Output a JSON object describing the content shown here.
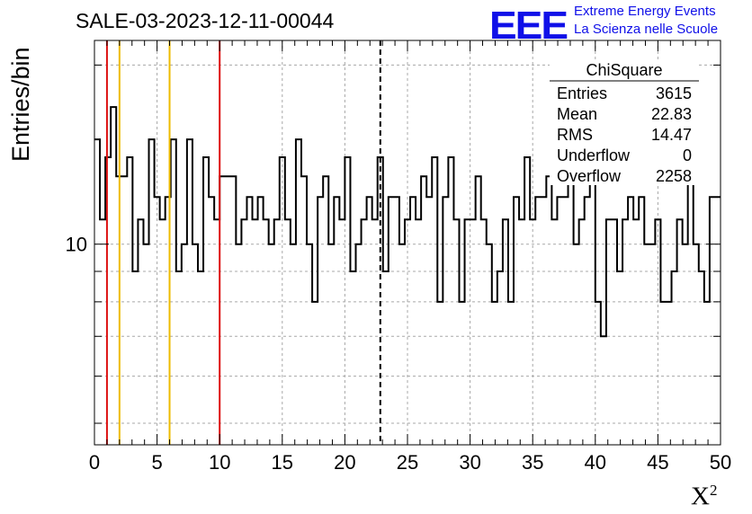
{
  "header": {
    "title": "SALE-03-2023-12-11-00044",
    "logo_text": "EEE",
    "logo_line1": "Extreme Energy Events",
    "logo_line2": "La Scienza nelle Scuole"
  },
  "stats_box": {
    "name": "ChiSquare",
    "rows": [
      {
        "label": "Entries",
        "value": "3615"
      },
      {
        "label": "Mean",
        "value": "22.83"
      },
      {
        "label": "RMS",
        "value": "14.47"
      },
      {
        "label": "Underflow",
        "value": "0"
      },
      {
        "label": "Overflow",
        "value": "2258"
      }
    ]
  },
  "colors": {
    "line_red": "#dd1111",
    "line_yellow": "#eebb00",
    "histogram": "#000000",
    "grid": "#a8a8a8",
    "logo_blue": "#1010e8"
  },
  "chart_data": {
    "type": "bar",
    "style": "step-histogram",
    "title": "SALE-03-2023-12-11-00044",
    "xlabel": "Χ",
    "xlabel_superscript": "2",
    "ylabel": "Entries/bin",
    "xlim": [
      0,
      50
    ],
    "ylim": [
      4.6,
      22
    ],
    "yscale": "log",
    "grid": true,
    "x_ticks": [
      0,
      5,
      10,
      15,
      20,
      25,
      30,
      35,
      40,
      45,
      50
    ],
    "y_ticks": [
      10
    ],
    "bin_width": 0.5,
    "bin_start": 0,
    "values": [
      14,
      15,
      11,
      14,
      16,
      13,
      13,
      14,
      14,
      16,
      9,
      11,
      10,
      12,
      16,
      12,
      11,
      12,
      13,
      12,
      13,
      15,
      10,
      11,
      15,
      9,
      13,
      12,
      11,
      13,
      13,
      13,
      13,
      10,
      11,
      12,
      11,
      12,
      11,
      10,
      11,
      14,
      11,
      10,
      11,
      14,
      13,
      10,
      8,
      13,
      11,
      12,
      13,
      9,
      11,
      12,
      11,
      9,
      8,
      11,
      11,
      12,
      11,
      14,
      12,
      10,
      11,
      9,
      13,
      12,
      11,
      8,
      14,
      12,
      8,
      11,
      13,
      12,
      8,
      11,
      10,
      11,
      10,
      8,
      12,
      14,
      13,
      12,
      10,
      12,
      10,
      7,
      6,
      12,
      13,
      11,
      14,
      12,
      13,
      13,
      10,
      10,
      12,
      10,
      10,
      12,
      11,
      12,
      10,
      12,
      13,
      11,
      10,
      12,
      11,
      12,
      13,
      10,
      12,
      12,
      9,
      9,
      11,
      13,
      10,
      9,
      12,
      12,
      10,
      10,
      11,
      12,
      10,
      10,
      11,
      12,
      11,
      12,
      12,
      11,
      12,
      11,
      11,
      13,
      9,
      10,
      10,
      11,
      10,
      11,
      10,
      10,
      12,
      11,
      12,
      10,
      10,
      12,
      12,
      12,
      10,
      12,
      13,
      12,
      9,
      10,
      12,
      12,
      11,
      10,
      10,
      12,
      13,
      12,
      10,
      9,
      11,
      10,
      10,
      12,
      12,
      13,
      11,
      10,
      11,
      11,
      12,
      13,
      12,
      12,
      9,
      9,
      11,
      12,
      12,
      10,
      12,
      11,
      12,
      11,
      12,
      14,
      13,
      11,
      11,
      13,
      12,
      10,
      13,
      11,
      12,
      10,
      11,
      10,
      12,
      12,
      13,
      11,
      10,
      12,
      10,
      9,
      10,
      11,
      11,
      12,
      10,
      10,
      12,
      10,
      11,
      14,
      11,
      12,
      12,
      11,
      10,
      12,
      14,
      12,
      12,
      10,
      12,
      11,
      11,
      11,
      12,
      13,
      11,
      12,
      12,
      12,
      13,
      12,
      11,
      12,
      13,
      12,
      12,
      13,
      11,
      10,
      11,
      12,
      11,
      12,
      12,
      11,
      11,
      11,
      10,
      12,
      13,
      12,
      11,
      10,
      10,
      12,
      13,
      10,
      10,
      12,
      14,
      12,
      11,
      11,
      13,
      12,
      11,
      12,
      13,
      11,
      12,
      11,
      12,
      13,
      12,
      11,
      10,
      11,
      11,
      11,
      12,
      12,
      13,
      11,
      12,
      11,
      10,
      9,
      11,
      10,
      11,
      12,
      11,
      12,
      10,
      11,
      12,
      11,
      11,
      11,
      13,
      10,
      11,
      12,
      12,
      12,
      12,
      11,
      10,
      13,
      12,
      10,
      11,
      12,
      11,
      10,
      11,
      11,
      11,
      10,
      11,
      10,
      10,
      12,
      13,
      12,
      12,
      12,
      11,
      11,
      10,
      10,
      10,
      11,
      11,
      12,
      13,
      11,
      10,
      9,
      11,
      10,
      11,
      10,
      10,
      10,
      10,
      10,
      10,
      13,
      12,
      12,
      12,
      10,
      11,
      10,
      12,
      11,
      10,
      11,
      13,
      12,
      11,
      12,
      11,
      11,
      12,
      11,
      10,
      11,
      10,
      10,
      11,
      12,
      11,
      12,
      12,
      10,
      10,
      11,
      11,
      12,
      12,
      12,
      11,
      12,
      9,
      9,
      11,
      12,
      11,
      12,
      11,
      10,
      11,
      11,
      10,
      10,
      10,
      10,
      12,
      11,
      10,
      10,
      10,
      11,
      11,
      12,
      12,
      12,
      11,
      9,
      9,
      9,
      10,
      11,
      12,
      13,
      13,
      13,
      11,
      11,
      10,
      10,
      11,
      11,
      11,
      12,
      11,
      10,
      10,
      10,
      10,
      12,
      12,
      12,
      11,
      11,
      12,
      11,
      9,
      10,
      10,
      10,
      11,
      12,
      12,
      12,
      11,
      10,
      11,
      11,
      10,
      10,
      12,
      13,
      12,
      11,
      10,
      9,
      11,
      11,
      11,
      12,
      12,
      11,
      10,
      10,
      11,
      12,
      11,
      10,
      10,
      11,
      12,
      11,
      12,
      11,
      10,
      11,
      12,
      10,
      11,
      10,
      11,
      9,
      10,
      12,
      12,
      11,
      11,
      10,
      10,
      10,
      10,
      11,
      10,
      9,
      9,
      9,
      10,
      11,
      12,
      12,
      12,
      10,
      9,
      10,
      10,
      10,
      11,
      10,
      10,
      11,
      11,
      10,
      12,
      12,
      11,
      11,
      10,
      11,
      10,
      9,
      10,
      11,
      12,
      10,
      10,
      10,
      11,
      11,
      11,
      12,
      11,
      11,
      11,
      10,
      11,
      12,
      11,
      9,
      10,
      11,
      11,
      12,
      11,
      11,
      10,
      11,
      11,
      11,
      10,
      11,
      10,
      10,
      10,
      11,
      11,
      12,
      11,
      10,
      11,
      12,
      12,
      11,
      10,
      10,
      10,
      11,
      12,
      12,
      11,
      10,
      10,
      11,
      11,
      11,
      10,
      10,
      10,
      10,
      9,
      9,
      9,
      9,
      10,
      11,
      12,
      12,
      12,
      11,
      10,
      10,
      10,
      11,
      11,
      10,
      10,
      10,
      10,
      10,
      11,
      10,
      11,
      11,
      10,
      10,
      10,
      11,
      10,
      11,
      10,
      10,
      10,
      9,
      9,
      9,
      9,
      10,
      10,
      11,
      11,
      11,
      11,
      11,
      11,
      10,
      10,
      10,
      11,
      10,
      10,
      10,
      10,
      11,
      11,
      11,
      10,
      10,
      9,
      9,
      10,
      10,
      10,
      10,
      11,
      11,
      11,
      10,
      10,
      10,
      10,
      10,
      10,
      11,
      11,
      10,
      10,
      11,
      11,
      11,
      11,
      10,
      10,
      10,
      10,
      10,
      11,
      11,
      11,
      10,
      9,
      9,
      9,
      10,
      10,
      10,
      11,
      11,
      11,
      10,
      10,
      10,
      10,
      10,
      10,
      10,
      10,
      10,
      10,
      10,
      11,
      11,
      11,
      10,
      10,
      10,
      10,
      10,
      10,
      10,
      10,
      10,
      10,
      10,
      10,
      11,
      11,
      10,
      10,
      10,
      10,
      10,
      10,
      10,
      10,
      10,
      10,
      10,
      11,
      10,
      10,
      10,
      10,
      10,
      10,
      10,
      10,
      10,
      10,
      10,
      10,
      10,
      10,
      10,
      10,
      10,
      10,
      10,
      10,
      10,
      10,
      10,
      10,
      10,
      10,
      10,
      10,
      10,
      10,
      10,
      10,
      10,
      10,
      10,
      10,
      10,
      10,
      10,
      10,
      10,
      10,
      10,
      10,
      10,
      10,
      10,
      10,
      10,
      10,
      10,
      10,
      10,
      10,
      10,
      10,
      10,
      10,
      10,
      10,
      10,
      10,
      10,
      10,
      10,
      10,
      10,
      10,
      10,
      10,
      10,
      10,
      10,
      10,
      10,
      10,
      10,
      10,
      10,
      10,
      10,
      10,
      10,
      10,
      10,
      10,
      10,
      10,
      10,
      10,
      10,
      10,
      10,
      10,
      10,
      10,
      10,
      10,
      10,
      10,
      10,
      10,
      10,
      10,
      10,
      10
    ],
    "bin_values": [
      16,
      11,
      14,
      17,
      13,
      13,
      14,
      14,
      16,
      9,
      11,
      10,
      15,
      12,
      11,
      12,
      15,
      12,
      13,
      15,
      10,
      11,
      15,
      9,
      14,
      12,
      11,
      13,
      13,
      13,
      13,
      10,
      11,
      12,
      11,
      12,
      11,
      10,
      11,
      14,
      11,
      10,
      11,
      14,
      13,
      10,
      8,
      13,
      11,
      12,
      13,
      9,
      12,
      14,
      10,
      9,
      11,
      11,
      12,
      11,
      14,
      10,
      12,
      12,
      12,
      10,
      11,
      10,
      11,
      12,
      11,
      8,
      13,
      12,
      8,
      11,
      13,
      12,
      8,
      11,
      10,
      11,
      14,
      11,
      10,
      12,
      12,
      12,
      10,
      12,
      14,
      13,
      11,
      9,
      7,
      13,
      13,
      11,
      14,
      12,
      14,
      13,
      10,
      10,
      12,
      13,
      10,
      12,
      11,
      12,
      12,
      10,
      10,
      11,
      12,
      12,
      11,
      9,
      10,
      13,
      13,
      12,
      10,
      10,
      12,
      12,
      11,
      10,
      10,
      11,
      11,
      11,
      12,
      13,
      10,
      9,
      11,
      12,
      10,
      12,
      12,
      9,
      11,
      14,
      10,
      8,
      12,
      11,
      11,
      11,
      12,
      14,
      11,
      12,
      11,
      12,
      13,
      12,
      11,
      12,
      13,
      12,
      13,
      14,
      10,
      9,
      10,
      11,
      10,
      12,
      12,
      10,
      12,
      12,
      9,
      10,
      11,
      12,
      10,
      8,
      9,
      11,
      13,
      12,
      12,
      10,
      12,
      11,
      13,
      9,
      11,
      13,
      11,
      12,
      11,
      13,
      10,
      10,
      12,
      14,
      12,
      11,
      12,
      11,
      10,
      10,
      11,
      12,
      12,
      12,
      10,
      11,
      10,
      11,
      10,
      9,
      10,
      10,
      11,
      12,
      11,
      13,
      10,
      12,
      12,
      11,
      10,
      11,
      12,
      13,
      11,
      11,
      10,
      10,
      12,
      12,
      11,
      11,
      12,
      11,
      12,
      11,
      10,
      10,
      9,
      11,
      10,
      11,
      11,
      10,
      11,
      11,
      12,
      10,
      11,
      10,
      10,
      11,
      12,
      12,
      12,
      11,
      11,
      12,
      11,
      10,
      10,
      11,
      12,
      11,
      10,
      11,
      11,
      12,
      11,
      12,
      11,
      10,
      11,
      10,
      9,
      9,
      10,
      11,
      12,
      12,
      11,
      10,
      10,
      11,
      11,
      12,
      12,
      11,
      10,
      12,
      9,
      10,
      10,
      11,
      11,
      10,
      10,
      10,
      11,
      10,
      10,
      11,
      11,
      11,
      10,
      11,
      10,
      11,
      10,
      10,
      10,
      10,
      11,
      12,
      11,
      10,
      10,
      10,
      11,
      10,
      10,
      11,
      11,
      12,
      11,
      11,
      10,
      10,
      9,
      11,
      12,
      11,
      11,
      11,
      10,
      10,
      10,
      10,
      11,
      12,
      11,
      10,
      10,
      10,
      11,
      11,
      11,
      10,
      10,
      11,
      11,
      10,
      11,
      10,
      10,
      10,
      11,
      11,
      10,
      10,
      10,
      10,
      11,
      10,
      11,
      10,
      10,
      10,
      10,
      10,
      10,
      10,
      11,
      10,
      10,
      10,
      10,
      10,
      11,
      10,
      10,
      10,
      10,
      10,
      10,
      10,
      10,
      10,
      10,
      10,
      10,
      10,
      10,
      10,
      10,
      10,
      10,
      10,
      10,
      10,
      10,
      10,
      10,
      10,
      10,
      10,
      10,
      10,
      10,
      10,
      10,
      10,
      10,
      10,
      10,
      10,
      10,
      10,
      10,
      10,
      10,
      10,
      10,
      10,
      10,
      10,
      10,
      10
    ],
    "hist": [
      15,
      11,
      14,
      17,
      13,
      13,
      14,
      9,
      11,
      10,
      15,
      12,
      11,
      12,
      15,
      9,
      10,
      15,
      10,
      9,
      14,
      12,
      11,
      13,
      13,
      13,
      10,
      11,
      12,
      11,
      12,
      11,
      10,
      11,
      14,
      11,
      10,
      15,
      13,
      10,
      8,
      12,
      13,
      10,
      12,
      11,
      14,
      9,
      10,
      11,
      12,
      11,
      14,
      9,
      12,
      12,
      10,
      11,
      12,
      11,
      13,
      12,
      14,
      8,
      12,
      14,
      11,
      8,
      11,
      11,
      13,
      11,
      10,
      8,
      9,
      11,
      8,
      12,
      11,
      14,
      11,
      12,
      12,
      13,
      11,
      12,
      12,
      13,
      10,
      11,
      12,
      14,
      8,
      7,
      11,
      11,
      9,
      11,
      12,
      11,
      12,
      10,
      10,
      11,
      8,
      8,
      9,
      11,
      10,
      13,
      10,
      9,
      8,
      12,
      12
    ],
    "hist_bins_0p4": true,
    "cut_lines": [
      {
        "x": 1,
        "color": "red"
      },
      {
        "x": 2,
        "color": "yellow"
      },
      {
        "x": 6,
        "color": "yellow"
      },
      {
        "x": 10,
        "color": "red"
      }
    ],
    "mean_line": {
      "x": 22.83,
      "style": "dashed"
    }
  }
}
